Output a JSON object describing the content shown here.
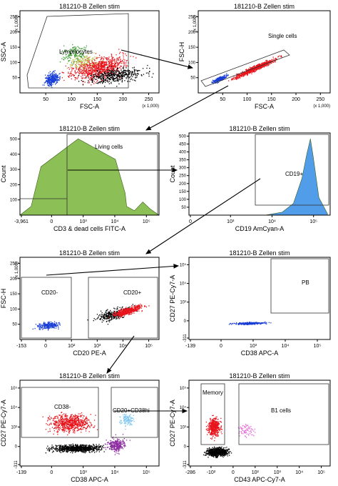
{
  "figure": {
    "panel_title": "181210-B Zellen stim",
    "colors": {
      "green_hist": "#7fb843",
      "blue_hist": "#3f92e8",
      "red": "#e8141c",
      "blue": "#1a3fd6",
      "black": "#000000",
      "purple": "#8a2a9e",
      "lightblue": "#7fc6f0",
      "pink": "#e46fd6",
      "green": "#3a9b30",
      "olive": "#b6bf43"
    }
  },
  "chart_data": [
    {
      "id": "p1",
      "type": "scatter",
      "title": "181210-B Zellen stim",
      "xlabel": "FSC-A",
      "ylabel": "SSC-A",
      "x_scale_note": "(x 1,000)",
      "y_scale_note": "(x 1,000)",
      "xlim": [
        0,
        262
      ],
      "ylim": [
        0,
        262
      ],
      "xticks": [
        "50",
        "100",
        "150",
        "200",
        "250"
      ],
      "yticks": [
        "50",
        "100",
        "150",
        "200",
        "250"
      ],
      "gate_label": "Lymphocytes",
      "populations": [
        {
          "color": "red",
          "x_range": [
            60,
            200
          ],
          "y_range": [
            20,
            150
          ]
        },
        {
          "color": "blue",
          "x_range": [
            30,
            70
          ],
          "y_range": [
            25,
            80
          ]
        },
        {
          "color": "green",
          "x_range": [
            60,
            130
          ],
          "y_range": [
            50,
            130
          ]
        },
        {
          "color": "black",
          "x_range": [
            150,
            260
          ],
          "y_range": [
            10,
            140
          ]
        }
      ]
    },
    {
      "id": "p2",
      "type": "scatter",
      "title": "181210-B Zellen stim",
      "xlabel": "FSC-A",
      "ylabel": "FSC-H",
      "x_scale_note": "(x 1,000)",
      "y_scale_note": "(x 1,000)",
      "xlim": [
        0,
        262
      ],
      "ylim": [
        0,
        262
      ],
      "xticks": [
        "50",
        "100",
        "150",
        "200",
        "250"
      ],
      "yticks": [
        "50",
        "100",
        "150",
        "200",
        "250"
      ],
      "gate_label": "Single cells",
      "populations": [
        {
          "color": "blue",
          "x_range": [
            30,
            70
          ],
          "diagonal_slope": 0.55
        },
        {
          "color": "red",
          "x_range": [
            60,
            200
          ],
          "diagonal_slope": 0.55
        }
      ]
    },
    {
      "id": "p3",
      "type": "area",
      "title": "181210-B Zellen stim",
      "xlabel": "CD3 & dead cells FITC-A",
      "ylabel": "Count",
      "xlim": [
        -3961,
        100000
      ],
      "x_tick_labels": [
        "-3,961",
        "0",
        "10³",
        "10⁴",
        "10⁵"
      ],
      "ylim": [
        0,
        560
      ],
      "yticks": [
        "100",
        "200",
        "300",
        "400",
        "500"
      ],
      "gate_label": "Living cells",
      "histogram": [
        {
          "x": -3961,
          "count": 0
        },
        {
          "x": -800,
          "count": 60
        },
        {
          "x": -200,
          "count": 330
        },
        {
          "x": 0,
          "count": 520
        },
        {
          "x": 200,
          "count": 380
        },
        {
          "x": 500,
          "count": 230
        },
        {
          "x": 800,
          "count": 150
        },
        {
          "x": 1000,
          "count": 60
        },
        {
          "x": 3000,
          "count": 30
        },
        {
          "x": 10000,
          "count": 90
        },
        {
          "x": 30000,
          "count": 40
        },
        {
          "x": 100000,
          "count": 0
        }
      ]
    },
    {
      "id": "p4",
      "type": "area",
      "title": "181210-B Zellen stim",
      "xlabel": "CD19 AmCyan-A",
      "ylabel": "Count",
      "xlim": [
        0,
        100000
      ],
      "x_tick_labels": [
        "0",
        "10³",
        "10⁴",
        "10⁵"
      ],
      "ylim": [
        0,
        560
      ],
      "yticks": [
        "50",
        "100",
        "150",
        "200",
        "250",
        "300",
        "350",
        "400",
        "450",
        "500"
      ],
      "gate_label": "CD19+",
      "histogram": [
        {
          "x": 500,
          "count": 0
        },
        {
          "x": 2000,
          "count": 20
        },
        {
          "x": 5000,
          "count": 80
        },
        {
          "x": 10000,
          "count": 250
        },
        {
          "x": 15000,
          "count": 420
        },
        {
          "x": 20000,
          "count": 520
        },
        {
          "x": 25000,
          "count": 400
        },
        {
          "x": 40000,
          "count": 120
        },
        {
          "x": 80000,
          "count": 10
        }
      ]
    },
    {
      "id": "p5",
      "type": "scatter",
      "title": "181210-B Zellen stim",
      "xlabel": "CD20 PE-A",
      "ylabel": "FSC-H",
      "y_scale_note": "(x 1,000)",
      "x_tick_labels": [
        "-153",
        "0",
        "10²",
        "10³",
        "10⁴",
        "10⁵"
      ],
      "yticks": [
        "50",
        "100",
        "150",
        "200",
        "250"
      ],
      "gate_labels": [
        "CD20-",
        "CD20+"
      ],
      "populations": [
        {
          "color": "blue",
          "x_range": [
            "-100",
            "10³"
          ],
          "y_range": [
            20,
            60
          ]
        },
        {
          "color": "red",
          "x_range": [
            "10³",
            "10⁵"
          ],
          "y_range": [
            30,
            100
          ]
        },
        {
          "color": "black",
          "x_range": [
            "10³",
            "10⁵"
          ],
          "y_range": [
            30,
            100
          ]
        }
      ]
    },
    {
      "id": "p6",
      "type": "scatter",
      "title": "181210-B Zellen stim",
      "xlabel": "CD38 APC-A",
      "ylabel": "CD27 PE-Cy7-A",
      "x_tick_labels": [
        "-139",
        "0",
        "10³",
        "10⁴",
        "10⁵"
      ],
      "y_tick_labels": [
        "-311",
        "0",
        "10³",
        "10⁴",
        "10⁵"
      ],
      "gate_label": "PB",
      "populations": [
        {
          "color": "blue",
          "x_range": [
            "0",
            "10⁴"
          ],
          "y_range": [
            "0",
            "10³"
          ]
        }
      ]
    },
    {
      "id": "p7",
      "type": "scatter",
      "title": "181210-B Zellen stim",
      "xlabel": "CD38 APC-A",
      "ylabel": "CD27 PE-Cy7-A",
      "x_tick_labels": [
        "-139",
        "0",
        "10³",
        "10⁴",
        "10⁵"
      ],
      "y_tick_labels": [
        "-311",
        "0",
        "10³",
        "10⁴",
        "10⁵"
      ],
      "gate_labels": [
        "CD38-",
        "CD20+CD38hi"
      ],
      "populations": [
        {
          "color": "red",
          "x_range": [
            "-139",
            "10⁴"
          ],
          "y_range": [
            "10³",
            "10⁵"
          ]
        },
        {
          "color": "black",
          "x_range": [
            "-139",
            "10⁴"
          ],
          "y_range": [
            "-311",
            "10³"
          ]
        },
        {
          "color": "purple",
          "x_range": [
            "10⁴",
            "10⁵"
          ],
          "y_range": [
            "-311",
            "10⁴"
          ]
        },
        {
          "color": "lightblue",
          "x_range": [
            "10⁴",
            "10⁵"
          ],
          "y_range": [
            "10³",
            "10⁵"
          ]
        }
      ]
    },
    {
      "id": "p8",
      "type": "scatter",
      "title": "181210-B Zellen stim",
      "xlabel": "CD43 APC-Cy7-A",
      "ylabel": "CD27 PE-Cy7-A",
      "x_tick_labels": [
        "-286",
        "-10²",
        "0",
        "10²",
        "10³",
        "10⁴",
        "10⁵"
      ],
      "y_tick_labels": [
        "-311",
        "0",
        "10³",
        "10⁴",
        "10⁵"
      ],
      "gate_labels": [
        "Memory",
        "B1 cells"
      ],
      "populations": [
        {
          "color": "red",
          "x_range": [
            "-10²",
            "10²"
          ],
          "y_range": [
            "10³",
            "10⁵"
          ]
        },
        {
          "color": "black",
          "x_range": [
            "-10²",
            "10³"
          ],
          "y_range": [
            "-311",
            "10³"
          ]
        },
        {
          "color": "pink",
          "x_range": [
            "10³",
            "10⁴"
          ],
          "y_range": [
            "10³",
            "10⁴"
          ]
        }
      ]
    }
  ]
}
